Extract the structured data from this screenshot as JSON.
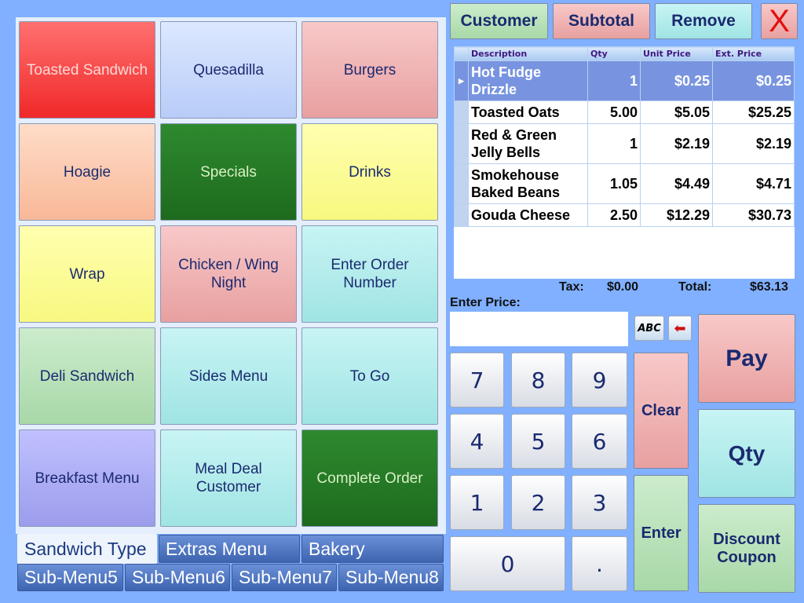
{
  "menu_buttons": [
    "Toasted Sandwich",
    "Quesadilla",
    "Burgers",
    "Hoagie",
    "Specials",
    "Drinks",
    "Wrap",
    "Chicken /  Wing Night",
    "Enter Order Number",
    "Deli Sandwich",
    "Sides Menu",
    "To Go",
    "Breakfast Menu",
    "Meal Deal Customer",
    "Complete Order"
  ],
  "tabs_row1": [
    "Sandwich Type",
    "Extras Menu",
    "Bakery"
  ],
  "tabs_row2": [
    "Sub-Menu5",
    "Sub-Menu6",
    "Sub-Menu7",
    "Sub-Menu8"
  ],
  "toolbar": {
    "customer": "Customer",
    "subtotal": "Subtotal",
    "remove": "Remove",
    "close": "X"
  },
  "order_table": {
    "headers": [
      "Description",
      "Qty",
      "Unit Price",
      "Ext. Price"
    ],
    "rows": [
      {
        "desc": "Hot Fudge Drizzle",
        "qty": "1",
        "unit": "$0.25",
        "ext": "$0.25"
      },
      {
        "desc": "Toasted Oats",
        "qty": "5.00",
        "unit": "$5.05",
        "ext": "$25.25"
      },
      {
        "desc": "Red & Green Jelly Bells",
        "qty": "1",
        "unit": "$2.19",
        "ext": "$2.19"
      },
      {
        "desc": "Smokehouse Baked Beans",
        "qty": "1.05",
        "unit": "$4.49",
        "ext": "$4.71"
      },
      {
        "desc": "Gouda Cheese",
        "qty": "2.50",
        "unit": "$12.29",
        "ext": "$30.73"
      }
    ]
  },
  "totals": {
    "tax_label": "Tax:",
    "tax": "$0.00",
    "total_label": "Total:",
    "total": "$63.13"
  },
  "entry": {
    "label": "Enter Price:",
    "value": "",
    "abc": "ABC"
  },
  "keypad": {
    "k7": "7",
    "k8": "8",
    "k9": "9",
    "k4": "4",
    "k5": "5",
    "k6": "6",
    "k1": "1",
    "k2": "2",
    "k3": "3",
    "k0": "0",
    "dot": ".",
    "clear": "Clear",
    "enter": "Enter"
  },
  "actions": {
    "pay": "Pay",
    "qty": "Qty",
    "discount": "Discount Coupon"
  }
}
